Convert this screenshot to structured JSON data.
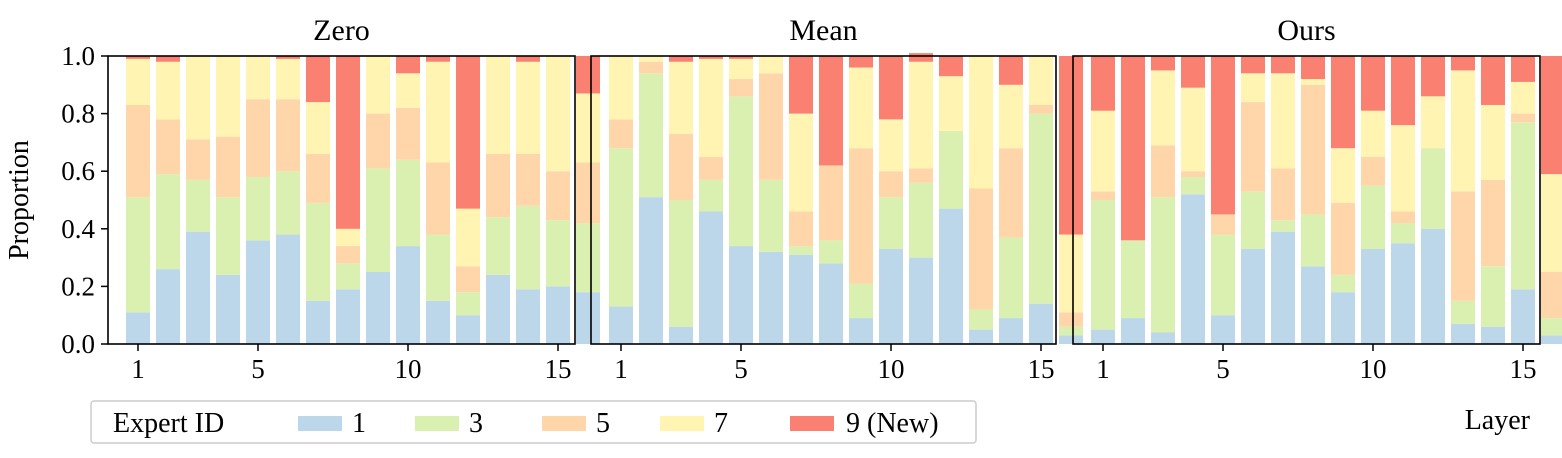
{
  "ylabel": "Proportion",
  "xlabel": "Layer",
  "yticks": [
    "0.0",
    "0.2",
    "0.4",
    "0.6",
    "0.8",
    "1.0"
  ],
  "xticks": [
    "1",
    "5",
    "10",
    "15"
  ],
  "legend": {
    "title": "Expert ID",
    "entries": [
      {
        "label": "1",
        "color": "#bdd7ea"
      },
      {
        "label": "3",
        "color": "#d9f0b1"
      },
      {
        "label": "5",
        "color": "#fed6a9"
      },
      {
        "label": "7",
        "color": "#fff4b1"
      },
      {
        "label": "9 (New)",
        "color": "#fa8072"
      }
    ]
  },
  "chart_data": [
    {
      "type": "bar",
      "stacked": true,
      "title": "Zero",
      "categories": [
        1,
        2,
        3,
        4,
        5,
        6,
        7,
        8,
        9,
        10,
        11,
        12,
        13,
        14,
        15,
        16
      ],
      "ylim": [
        0,
        1.0
      ],
      "series": [
        {
          "name": "1",
          "values": [
            0.11,
            0.26,
            0.39,
            0.24,
            0.36,
            0.38,
            0.15,
            0.19,
            0.25,
            0.34,
            0.15,
            0.1,
            0.24,
            0.19,
            0.2,
            0.18
          ]
        },
        {
          "name": "3",
          "values": [
            0.4,
            0.33,
            0.18,
            0.27,
            0.22,
            0.22,
            0.34,
            0.09,
            0.36,
            0.3,
            0.23,
            0.08,
            0.2,
            0.29,
            0.23,
            0.24
          ]
        },
        {
          "name": "5",
          "values": [
            0.32,
            0.19,
            0.14,
            0.21,
            0.27,
            0.25,
            0.17,
            0.06,
            0.19,
            0.18,
            0.25,
            0.09,
            0.22,
            0.18,
            0.17,
            0.21
          ]
        },
        {
          "name": "7",
          "values": [
            0.16,
            0.2,
            0.29,
            0.28,
            0.15,
            0.14,
            0.18,
            0.06,
            0.2,
            0.12,
            0.35,
            0.2,
            0.34,
            0.32,
            0.4,
            0.24
          ]
        },
        {
          "name": "9 (New)",
          "values": [
            0.01,
            0.02,
            0.0,
            0.0,
            0.0,
            0.01,
            0.16,
            0.6,
            0.0,
            0.06,
            0.02,
            0.53,
            0.0,
            0.02,
            0.0,
            0.13
          ]
        }
      ]
    },
    {
      "type": "bar",
      "stacked": true,
      "title": "Mean",
      "categories": [
        1,
        2,
        3,
        4,
        5,
        6,
        7,
        8,
        9,
        10,
        11,
        12,
        13,
        14,
        15,
        16
      ],
      "ylim": [
        0,
        1.0
      ],
      "series": [
        {
          "name": "1",
          "values": [
            0.13,
            0.51,
            0.06,
            0.46,
            0.34,
            0.32,
            0.31,
            0.28,
            0.09,
            0.33,
            0.3,
            0.47,
            0.05,
            0.09,
            0.14,
            0.03
          ]
        },
        {
          "name": "3",
          "values": [
            0.55,
            0.43,
            0.44,
            0.11,
            0.52,
            0.25,
            0.03,
            0.08,
            0.12,
            0.18,
            0.26,
            0.27,
            0.07,
            0.28,
            0.66,
            0.03
          ]
        },
        {
          "name": "5",
          "values": [
            0.1,
            0.04,
            0.23,
            0.08,
            0.06,
            0.37,
            0.12,
            0.26,
            0.47,
            0.09,
            0.05,
            0.0,
            0.42,
            0.31,
            0.03,
            0.05
          ]
        },
        {
          "name": "7",
          "values": [
            0.22,
            0.02,
            0.25,
            0.34,
            0.07,
            0.06,
            0.34,
            0.0,
            0.28,
            0.18,
            0.37,
            0.19,
            0.46,
            0.22,
            0.17,
            0.27
          ]
        },
        {
          "name": "9 (New)",
          "values": [
            0.0,
            0.0,
            0.02,
            0.01,
            0.01,
            0.0,
            0.2,
            0.38,
            0.04,
            0.22,
            0.03,
            0.07,
            0.0,
            0.1,
            0.0,
            0.62
          ]
        }
      ]
    },
    {
      "type": "bar",
      "stacked": true,
      "title": "Ours",
      "categories": [
        1,
        2,
        3,
        4,
        5,
        6,
        7,
        8,
        9,
        10,
        11,
        12,
        13,
        14,
        15,
        16
      ],
      "ylim": [
        0,
        1.0
      ],
      "series": [
        {
          "name": "1",
          "values": [
            0.05,
            0.09,
            0.04,
            0.52,
            0.1,
            0.33,
            0.39,
            0.27,
            0.18,
            0.33,
            0.35,
            0.4,
            0.07,
            0.06,
            0.19,
            0.03
          ]
        },
        {
          "name": "3",
          "values": [
            0.45,
            0.27,
            0.47,
            0.06,
            0.28,
            0.2,
            0.04,
            0.18,
            0.06,
            0.22,
            0.07,
            0.28,
            0.08,
            0.21,
            0.58,
            0.06
          ]
        },
        {
          "name": "5",
          "values": [
            0.03,
            0.0,
            0.18,
            0.02,
            0.07,
            0.31,
            0.18,
            0.45,
            0.25,
            0.1,
            0.04,
            0.0,
            0.38,
            0.3,
            0.03,
            0.16
          ]
        },
        {
          "name": "7",
          "values": [
            0.28,
            0.0,
            0.26,
            0.29,
            0.0,
            0.1,
            0.33,
            0.02,
            0.19,
            0.16,
            0.3,
            0.18,
            0.42,
            0.26,
            0.11,
            0.34
          ]
        },
        {
          "name": "9 (New)",
          "values": [
            0.19,
            0.64,
            0.05,
            0.11,
            0.55,
            0.06,
            0.06,
            0.08,
            0.32,
            0.19,
            0.24,
            0.14,
            0.05,
            0.17,
            0.09,
            0.41
          ]
        }
      ]
    }
  ]
}
